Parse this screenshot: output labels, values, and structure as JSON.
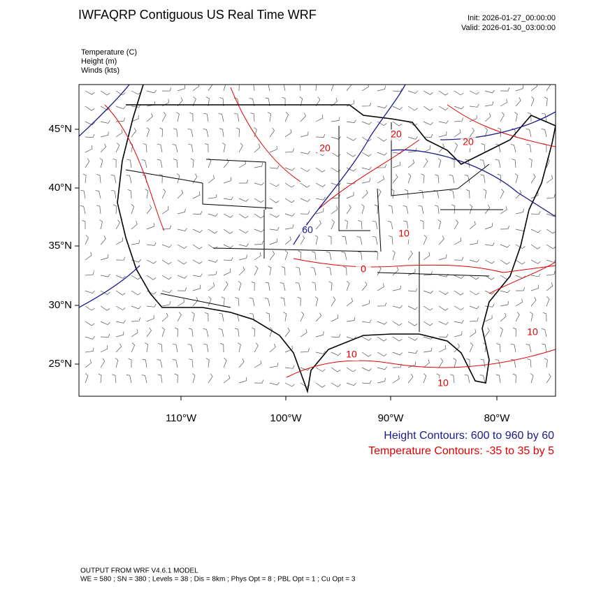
{
  "header": {
    "title": "IWFAQRP Contiguous US Real Time WRF",
    "init": "Init: 2026-01-27_00:00:00",
    "valid": "Valid: 2026-01-30_03:00:00"
  },
  "fields": [
    "Temperature   (C)",
    "Height   (m)",
    "Winds   (kts)"
  ],
  "map": {
    "lat_labels": [
      "45°N",
      "40°N",
      "35°N",
      "30°N",
      "25°N"
    ],
    "lon_labels": [
      "110°W",
      "100°W",
      "90°W",
      "80°W"
    ],
    "contour_labels": [
      {
        "text": "20",
        "color": "red"
      },
      {
        "text": "20",
        "color": "red"
      },
      {
        "text": "20",
        "color": "red"
      },
      {
        "text": "10",
        "color": "red"
      },
      {
        "text": "0",
        "color": "red"
      },
      {
        "text": "10",
        "color": "red"
      },
      {
        "text": "10",
        "color": "red"
      },
      {
        "text": "10",
        "color": "red"
      },
      {
        "text": "60",
        "color": "navy"
      }
    ]
  },
  "legend": [
    "Height Contours: 600 to 960 by 60",
    "Temperature Contours: -35 to 35 by 5"
  ],
  "footer": [
    "OUTPUT FROM WRF V4.6.1 MODEL",
    "WE = 580 ; SN = 380 ; Levels = 38 ; Dis = 8km ; Phys Opt = 8 ; PBL Opt = 1 ; Cu Opt = 3"
  ]
}
